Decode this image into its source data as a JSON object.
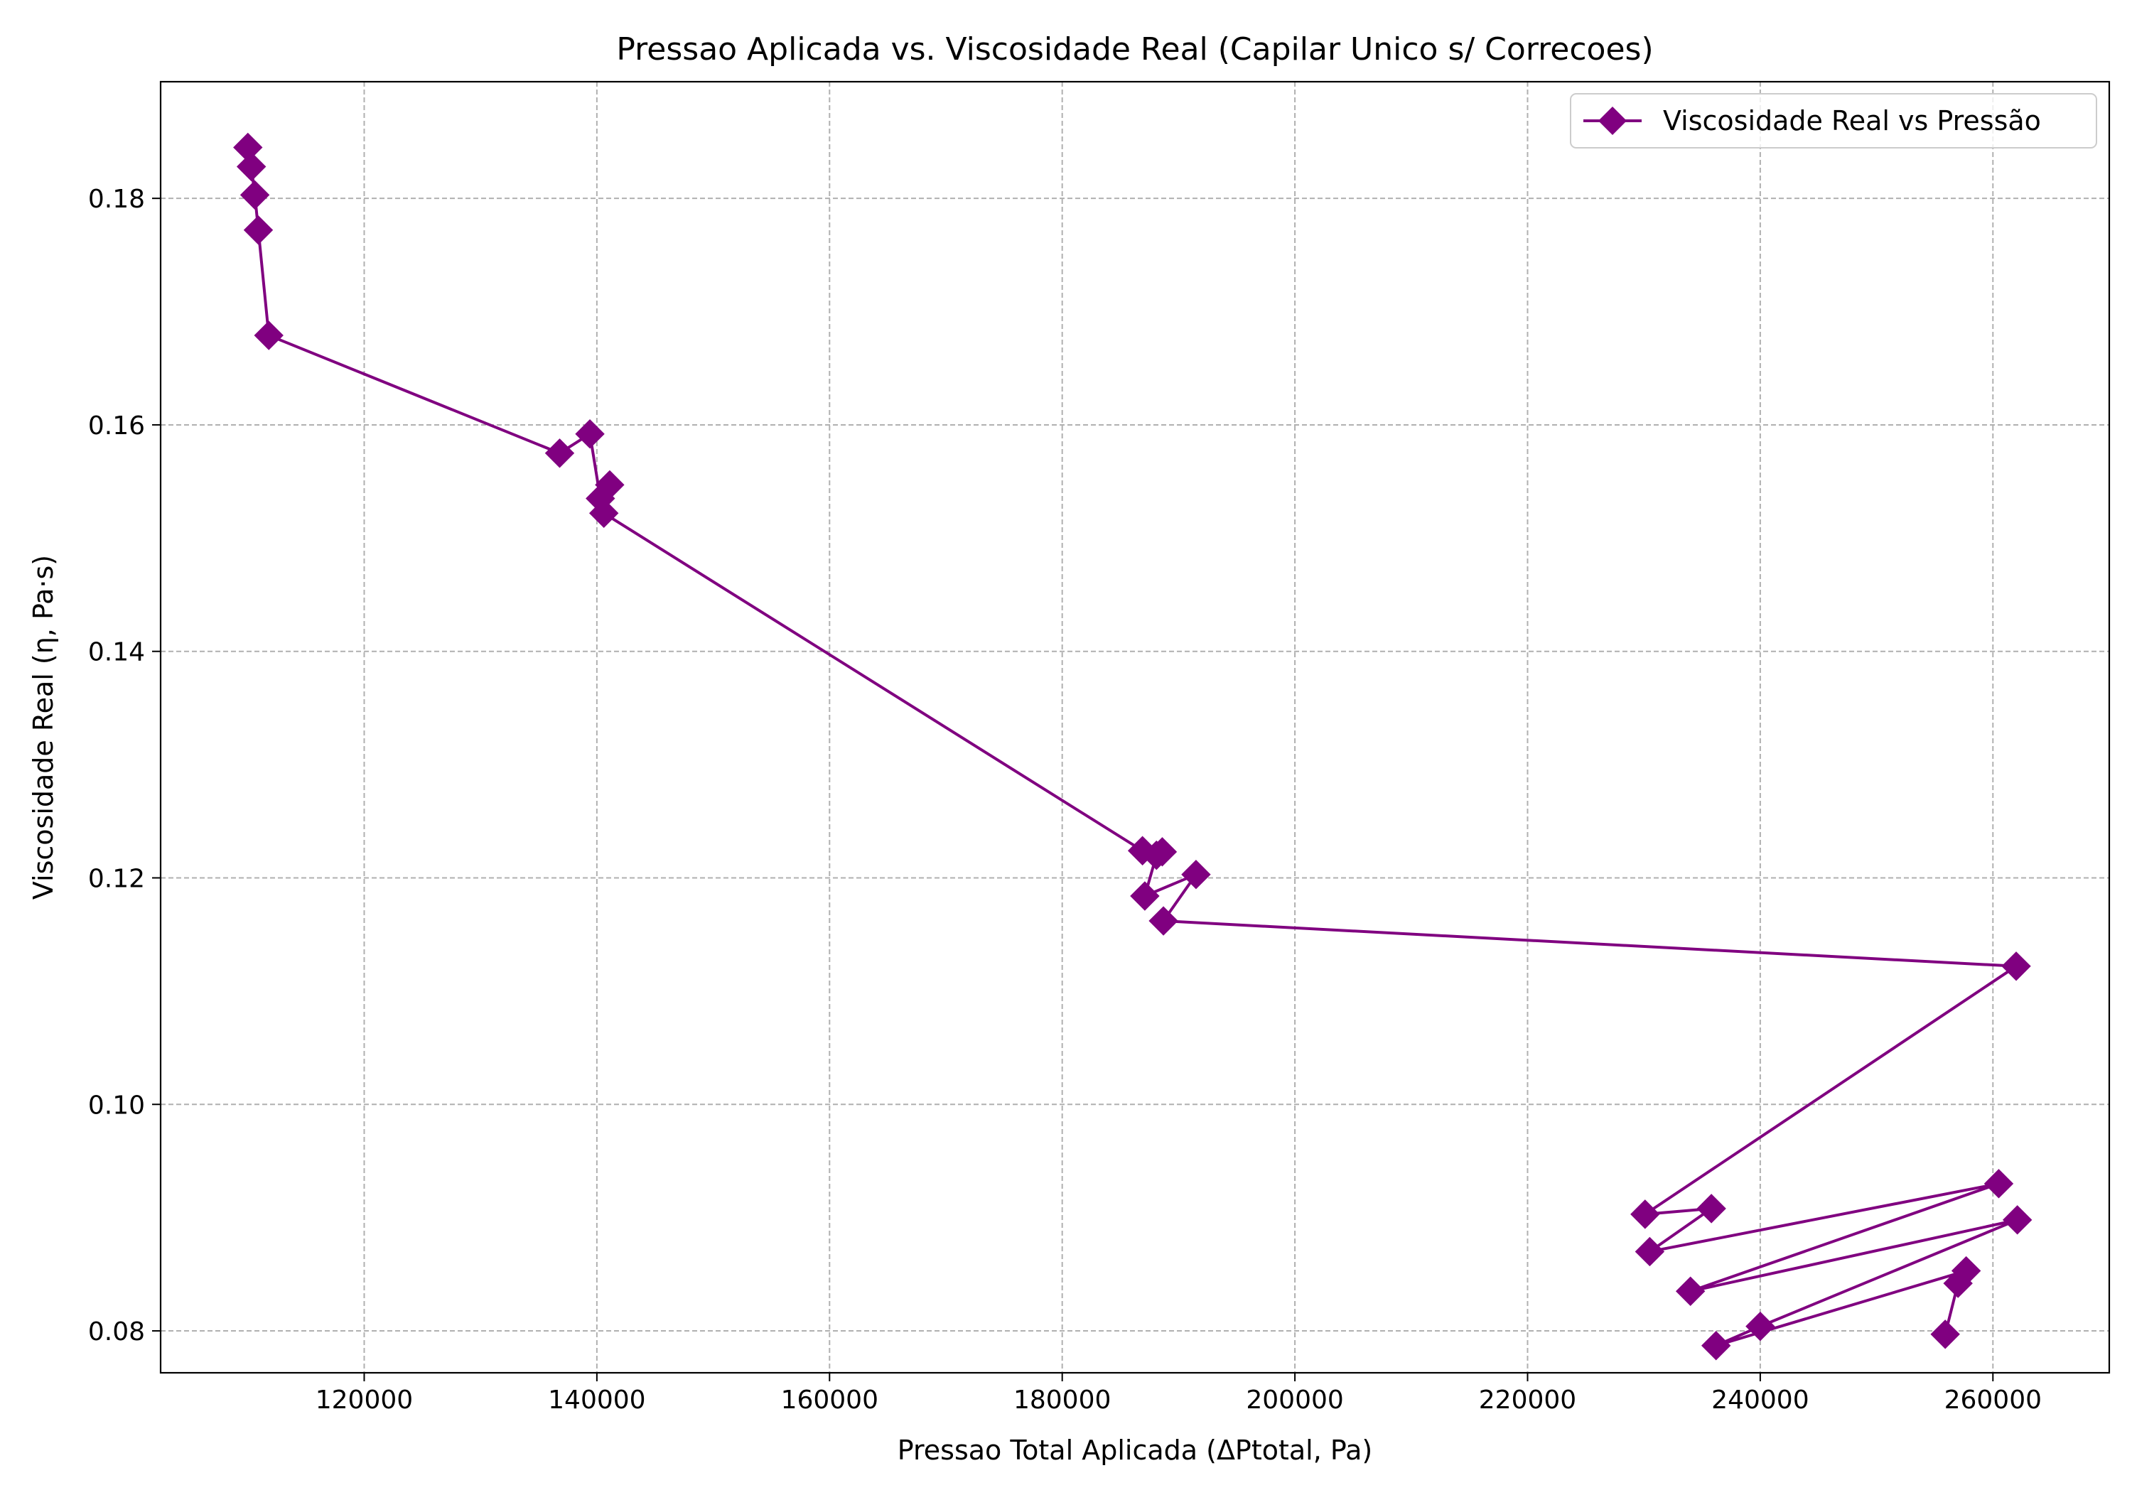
{
  "chart_data": {
    "type": "line",
    "title": "Pressao Aplicada vs. Viscosidade Real (Capilar Unico s/ Correcoes)",
    "xlabel": "Pressao Total Aplicada (ΔPtotal, Pa)",
    "ylabel": "Viscosidade Real (η, Pa·s)",
    "xlim": [
      102500,
      270000
    ],
    "ylim": [
      0.0763,
      0.1903
    ],
    "xticks": [
      120000,
      140000,
      160000,
      180000,
      200000,
      220000,
      240000,
      260000
    ],
    "xtick_labels": [
      "120000",
      "140000",
      "160000",
      "180000",
      "200000",
      "220000",
      "240000",
      "260000"
    ],
    "yticks": [
      0.08,
      0.1,
      0.12,
      0.14,
      0.16,
      0.18
    ],
    "ytick_labels": [
      "0.08",
      "0.10",
      "0.12",
      "0.14",
      "0.16",
      "0.18"
    ],
    "grid": true,
    "legend_position": "top-right",
    "color": "#800080",
    "marker": "diamond",
    "series": [
      {
        "name": "Viscosidade Real vs Pressão",
        "x": [
          110000,
          110300,
          110600,
          110900,
          111800,
          136800,
          139400,
          140300,
          141100,
          140600,
          186900,
          188600,
          188100,
          187100,
          191500,
          188700,
          262000,
          230100,
          235800,
          230500,
          260500,
          234000,
          262100,
          240000,
          236200,
          257700,
          257000,
          255900
        ],
        "y": [
          0.1845,
          0.1828,
          0.1803,
          0.1772,
          0.1679,
          0.1575,
          0.1592,
          0.1535,
          0.1547,
          0.1522,
          0.1224,
          0.1223,
          0.122,
          0.1184,
          0.1203,
          0.1162,
          0.1122,
          0.0903,
          0.0908,
          0.087,
          0.093,
          0.0835,
          0.0898,
          0.0804,
          0.0787,
          0.0853,
          0.0842,
          0.0797
        ]
      }
    ]
  }
}
